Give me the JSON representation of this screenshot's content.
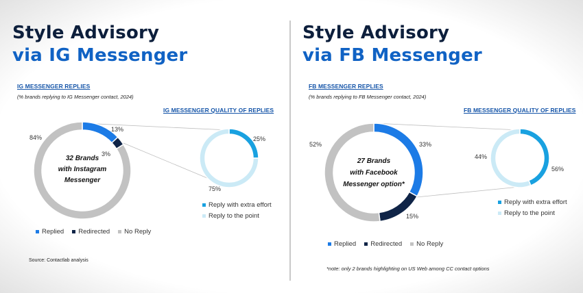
{
  "ig": {
    "title_line1": "Style Advisory",
    "title_line2": "via IG Messenger",
    "replies_heading": "IG MESSENGER REPLIES",
    "replies_sub": "(% brands replying to IG Messenger contact, 2024)",
    "quality_heading": "IG MESSENGER QUALITY OF REPLIES",
    "source": "Source: Contactlab analysis"
  },
  "fb": {
    "title_line1": "Style Advisory",
    "title_line2": "via FB Messenger",
    "replies_heading": "FB MESSENGER REPLIES",
    "replies_sub": "(% brands replying to FB Messenger contact, 2024)",
    "quality_heading": "FB MESSENGER QUALITY OF REPLIES",
    "note": "*note: only 2 brands highlighting on US Web among CC contact options"
  },
  "colors": {
    "replied": "#1c7be6",
    "redirected": "#0f2447",
    "no_reply": "#c2c2c2",
    "extra_effort": "#19a1e0",
    "to_the_point": "#cbeaf6",
    "connector": "#bdbdbd"
  },
  "chart_data": [
    {
      "type": "pie",
      "variant": "donut",
      "panel": "ig",
      "center_label": [
        "32 Brands",
        "with Instagram",
        "Messenger"
      ],
      "categories": [
        "Replied",
        "Redirected",
        "No Reply"
      ],
      "values": [
        13,
        3,
        84
      ],
      "value_labels": [
        "13%",
        "3%",
        "84%"
      ],
      "legend": [
        "Replied",
        "Redirected",
        "No Reply"
      ]
    },
    {
      "type": "pie",
      "variant": "donut",
      "panel": "ig",
      "title": "IG MESSENGER QUALITY OF REPLIES",
      "categories": [
        "Reply with extra effort",
        "Reply to the point"
      ],
      "values": [
        25,
        75
      ],
      "value_labels": [
        "25%",
        "75%"
      ],
      "legend": [
        "Reply with extra effort",
        "Reply to the point"
      ]
    },
    {
      "type": "pie",
      "variant": "donut",
      "panel": "fb",
      "center_label": [
        "27 Brands",
        "with Facebook",
        "Messenger option*"
      ],
      "categories": [
        "Replied",
        "Redirected",
        "No Reply"
      ],
      "values": [
        33,
        15,
        52
      ],
      "value_labels": [
        "33%",
        "15%",
        "52%"
      ],
      "legend": [
        "Replied",
        "Redirected",
        "No Reply"
      ]
    },
    {
      "type": "pie",
      "variant": "donut",
      "panel": "fb",
      "title": "FB MESSENGER QUALITY OF REPLIES",
      "categories": [
        "Reply with extra effort",
        "Reply to the point"
      ],
      "values": [
        44,
        56
      ],
      "value_labels": [
        "44%",
        "56%"
      ],
      "legend": [
        "Reply with extra effort",
        "Reply to the point"
      ]
    }
  ]
}
